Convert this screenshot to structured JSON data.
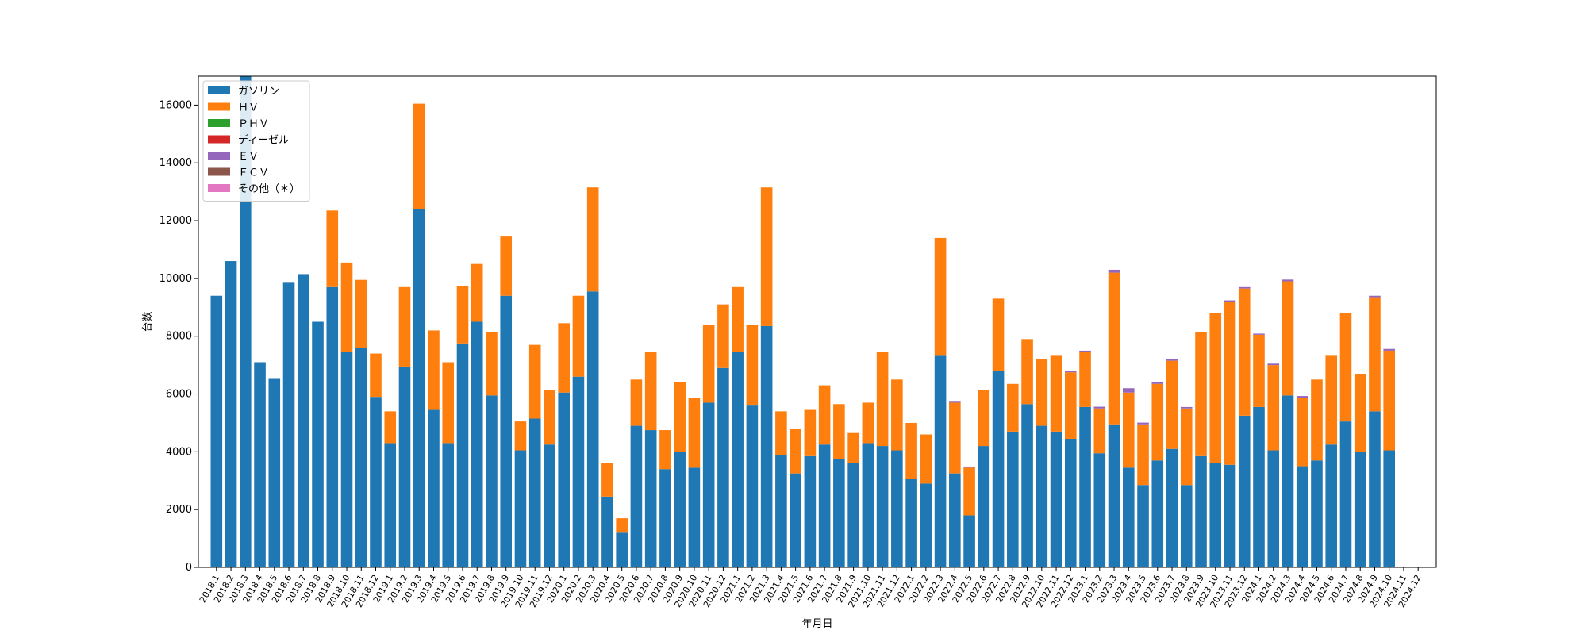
{
  "chart_data": {
    "type": "bar",
    "stacked": true,
    "xlabel": "年月日",
    "ylabel": "台数",
    "ylim": [
      0,
      17000
    ],
    "yticks": [
      0,
      2000,
      4000,
      6000,
      8000,
      10000,
      12000,
      14000,
      16000
    ],
    "legend_position": "top-left",
    "grid": false,
    "categories": [
      "2018.1",
      "2018.2",
      "2018.3",
      "2018.4",
      "2018.5",
      "2018.6",
      "2018.7",
      "2018.8",
      "2018.9",
      "2018.10",
      "2018.11",
      "2018.12",
      "2019.1",
      "2019.2",
      "2019.3",
      "2019.4",
      "2019.5",
      "2019.6",
      "2019.7",
      "2019.8",
      "2019.9",
      "2019.10",
      "2019.11",
      "2019.12",
      "2020.1",
      "2020.2",
      "2020.3",
      "2020.4",
      "2020.5",
      "2020.6",
      "2020.7",
      "2020.8",
      "2020.9",
      "2020.10",
      "2020.11",
      "2020.12",
      "2021.1",
      "2021.2",
      "2021.3",
      "2021.4",
      "2021.5",
      "2021.6",
      "2021.7",
      "2021.8",
      "2021.9",
      "2021.10",
      "2021.11",
      "2021.12",
      "2022.1",
      "2022.2",
      "2022.3",
      "2022.4",
      "2022.5",
      "2022.6",
      "2022.7",
      "2022.8",
      "2022.9",
      "2022.10",
      "2022.11",
      "2022.12",
      "2023.1",
      "2023.2",
      "2023.3",
      "2023.4",
      "2023.5",
      "2023.6",
      "2023.7",
      "2023.8",
      "2023.9",
      "2023.10",
      "2023.11",
      "2023.12",
      "2024.1",
      "2024.2",
      "2024.3",
      "2024.4",
      "2024.5",
      "2024.6",
      "2024.7",
      "2024.8",
      "2024.9",
      "2024.10",
      "2024.11",
      "2024.12"
    ],
    "series": [
      {
        "name": "ガソリン",
        "color": "#1f77b4",
        "values": [
          9400,
          10600,
          17000,
          7100,
          6550,
          9850,
          10150,
          8500,
          9700,
          7450,
          7600,
          5900,
          4300,
          6950,
          12400,
          5450,
          4300,
          7750,
          8500,
          5950,
          9400,
          4050,
          5150,
          4250,
          6050,
          6600,
          9550,
          2450,
          1200,
          4900,
          4750,
          3400,
          4000,
          3450,
          5700,
          6900,
          7450,
          5600,
          8350,
          3900,
          3250,
          3850,
          4250,
          3750,
          3600,
          4300,
          4200,
          4050,
          3050,
          2900,
          7350,
          3250,
          1800,
          4200,
          6800,
          4700,
          5650,
          4900,
          4700,
          4450,
          5550,
          3950,
          4950,
          3450,
          2850,
          3700,
          4100,
          2850,
          3850,
          3600,
          3550,
          5250,
          5550,
          4050,
          5950,
          3500,
          3700,
          4250,
          5050,
          4000,
          5400,
          4050,
          0,
          0
        ]
      },
      {
        "name": "ＨＶ",
        "color": "#ff7f0e",
        "values": [
          0,
          0,
          0,
          0,
          0,
          0,
          0,
          0,
          2650,
          3100,
          2350,
          1500,
          1100,
          2750,
          3650,
          2750,
          2800,
          2000,
          2000,
          2200,
          2050,
          1000,
          2550,
          1900,
          2400,
          2800,
          3600,
          1150,
          500,
          1600,
          2700,
          1350,
          2400,
          2400,
          2700,
          2200,
          2250,
          2800,
          4800,
          1500,
          1550,
          1600,
          2050,
          1900,
          1050,
          1400,
          3250,
          2450,
          1950,
          1700,
          4050,
          2450,
          1650,
          1950,
          2500,
          1650,
          2250,
          2300,
          2650,
          2300,
          1900,
          1550,
          5250,
          2600,
          2100,
          2650,
          3050,
          2650,
          4300,
          5200,
          5650,
          4400,
          2500,
          2950,
          3950,
          2350,
          2800,
          3100,
          3750,
          2700,
          3950,
          3450,
          0,
          0
        ]
      },
      {
        "name": "ＰＨＶ",
        "color": "#2ca02c",
        "values": [
          0,
          0,
          0,
          0,
          0,
          0,
          0,
          0,
          0,
          0,
          0,
          0,
          0,
          0,
          0,
          0,
          0,
          0,
          0,
          0,
          0,
          0,
          0,
          0,
          0,
          0,
          0,
          0,
          0,
          0,
          0,
          0,
          0,
          0,
          0,
          0,
          0,
          0,
          0,
          0,
          0,
          0,
          0,
          0,
          0,
          0,
          0,
          0,
          0,
          0,
          0,
          0,
          0,
          0,
          0,
          0,
          0,
          0,
          0,
          0,
          0,
          0,
          0,
          0,
          0,
          0,
          0,
          0,
          0,
          0,
          0,
          0,
          0,
          0,
          0,
          0,
          0,
          0,
          0,
          0,
          0,
          0,
          0,
          0
        ]
      },
      {
        "name": "ディーゼル",
        "color": "#d62728",
        "values": [
          0,
          0,
          0,
          0,
          0,
          0,
          0,
          0,
          0,
          0,
          0,
          0,
          0,
          0,
          0,
          0,
          0,
          0,
          0,
          0,
          0,
          0,
          0,
          0,
          0,
          0,
          0,
          0,
          0,
          0,
          0,
          0,
          0,
          0,
          0,
          0,
          0,
          0,
          0,
          0,
          0,
          0,
          0,
          0,
          0,
          0,
          0,
          0,
          0,
          0,
          0,
          0,
          0,
          0,
          0,
          0,
          0,
          0,
          0,
          0,
          0,
          0,
          0,
          0,
          0,
          0,
          0,
          0,
          0,
          0,
          0,
          0,
          0,
          0,
          0,
          0,
          0,
          0,
          0,
          0,
          0,
          0,
          0,
          0
        ]
      },
      {
        "name": "ＥＶ",
        "color": "#9467bd",
        "values": [
          0,
          0,
          0,
          0,
          0,
          0,
          0,
          0,
          0,
          0,
          0,
          0,
          0,
          0,
          0,
          0,
          0,
          0,
          0,
          0,
          0,
          0,
          0,
          0,
          0,
          0,
          0,
          0,
          0,
          0,
          0,
          0,
          0,
          0,
          0,
          0,
          0,
          0,
          0,
          0,
          0,
          0,
          0,
          0,
          0,
          0,
          0,
          0,
          0,
          0,
          0,
          60,
          40,
          0,
          0,
          0,
          0,
          0,
          0,
          40,
          50,
          60,
          100,
          150,
          60,
          60,
          60,
          50,
          0,
          0,
          40,
          50,
          40,
          50,
          60,
          80,
          0,
          0,
          0,
          0,
          50,
          60,
          0,
          0
        ]
      },
      {
        "name": "ＦＣＶ",
        "color": "#8c564b",
        "values": [
          0,
          0,
          0,
          0,
          0,
          0,
          0,
          0,
          0,
          0,
          0,
          0,
          0,
          0,
          0,
          0,
          0,
          0,
          0,
          0,
          0,
          0,
          0,
          0,
          0,
          0,
          0,
          0,
          0,
          0,
          0,
          0,
          0,
          0,
          0,
          0,
          0,
          0,
          0,
          0,
          0,
          0,
          0,
          0,
          0,
          0,
          0,
          0,
          0,
          0,
          0,
          0,
          0,
          0,
          0,
          0,
          0,
          0,
          0,
          0,
          0,
          0,
          0,
          0,
          0,
          0,
          0,
          0,
          0,
          0,
          0,
          0,
          0,
          0,
          0,
          0,
          0,
          0,
          0,
          0,
          0,
          0,
          0,
          0
        ]
      },
      {
        "name": "その他（＊）",
        "color": "#e377c2",
        "values": [
          0,
          0,
          0,
          0,
          0,
          0,
          0,
          0,
          0,
          0,
          0,
          0,
          0,
          0,
          0,
          0,
          0,
          0,
          0,
          0,
          0,
          0,
          0,
          0,
          0,
          0,
          0,
          0,
          0,
          0,
          0,
          0,
          0,
          0,
          0,
          0,
          0,
          0,
          0,
          0,
          0,
          0,
          0,
          0,
          0,
          0,
          0,
          0,
          0,
          0,
          0,
          0,
          0,
          0,
          0,
          0,
          0,
          0,
          0,
          0,
          0,
          0,
          0,
          0,
          0,
          0,
          0,
          0,
          0,
          0,
          0,
          0,
          0,
          0,
          0,
          0,
          0,
          0,
          0,
          0,
          0,
          0,
          0,
          0
        ]
      }
    ]
  }
}
